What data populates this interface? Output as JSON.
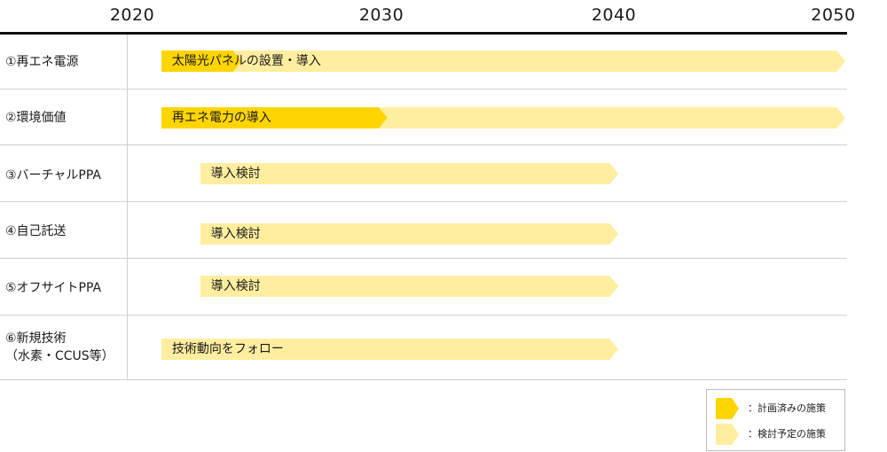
{
  "years": [
    "2020",
    "2030",
    "2040",
    "2050"
  ],
  "colors": {
    "planned": "#ffd500",
    "considered": "#ffeea0"
  },
  "rows": [
    {
      "label_lines": [
        "①再エネ電源"
      ],
      "bar_text": "太陽光パネルの設置・導入",
      "planned_from": 2021.2,
      "planned_to": 2024.5,
      "considered_to": 2050
    },
    {
      "label_lines": [
        "②環境価値"
      ],
      "bar_text": "再エネ電力の導入",
      "planned_from": 2021.2,
      "planned_to": 2030.5,
      "considered_to": 2050
    },
    {
      "label_lines": [
        "③バーチャルPPA"
      ],
      "bar_text": "導入検討",
      "planned_from": null,
      "planned_to": null,
      "considered_from": 2022.8,
      "considered_to": 2040
    },
    {
      "label_lines": [
        "④自己託送"
      ],
      "bar_text": "導入検討",
      "planned_from": null,
      "planned_to": null,
      "considered_from": 2022.8,
      "considered_to": 2040
    },
    {
      "label_lines": [
        "⑤オフサイトPPA"
      ],
      "bar_text": "導入検討",
      "planned_from": null,
      "planned_to": null,
      "considered_from": 2022.8,
      "considered_to": 2040
    },
    {
      "label_lines": [
        "⑥新規技術",
        "（水素・CCUS等）"
      ],
      "bar_text": "技術動向をフォロー",
      "planned_from": null,
      "planned_to": null,
      "considered_from": 2021.2,
      "considered_to": 2040
    }
  ],
  "legend": {
    "planned_label": "：計画済みの施策",
    "considered_label": "：検討予定の施策"
  }
}
